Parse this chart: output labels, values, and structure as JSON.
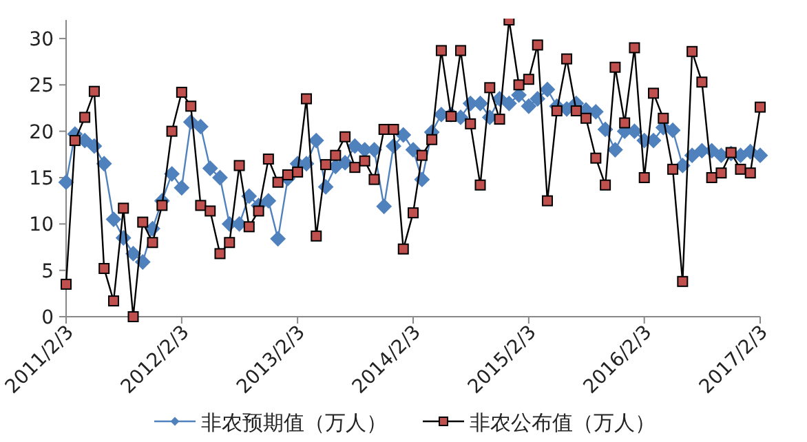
{
  "chart_data": {
    "type": "line",
    "x": [
      "2011-02-03",
      "2011-03-03",
      "2011-04-03",
      "2011-05-03",
      "2011-06-03",
      "2011-07-03",
      "2011-08-03",
      "2011-09-03",
      "2011-10-03",
      "2011-11-03",
      "2011-12-03",
      "2012-01-03",
      "2012-02-03",
      "2012-03-03",
      "2012-04-03",
      "2012-05-03",
      "2012-06-03",
      "2012-07-03",
      "2012-08-03",
      "2012-09-03",
      "2012-10-03",
      "2012-11-03",
      "2012-12-03",
      "2013-01-03",
      "2013-02-03",
      "2013-03-03",
      "2013-04-03",
      "2013-05-03",
      "2013-06-03",
      "2013-07-03",
      "2013-08-03",
      "2013-09-03",
      "2013-10-03",
      "2013-11-03",
      "2013-12-03",
      "2014-01-03",
      "2014-02-03",
      "2014-03-03",
      "2014-04-03",
      "2014-05-03",
      "2014-06-03",
      "2014-07-03",
      "2014-08-03",
      "2014-09-03",
      "2014-10-03",
      "2014-11-03",
      "2014-12-03",
      "2015-01-03",
      "2015-02-03",
      "2015-03-03",
      "2015-04-03",
      "2015-05-03",
      "2015-06-03",
      "2015-07-03",
      "2015-08-03",
      "2015-09-03",
      "2015-10-03",
      "2015-11-03",
      "2015-12-03",
      "2016-01-03",
      "2016-02-03",
      "2016-03-03",
      "2016-04-03",
      "2016-05-03",
      "2016-06-03",
      "2016-07-03",
      "2016-08-03",
      "2016-09-03",
      "2016-10-03",
      "2016-11-03",
      "2016-12-03",
      "2017-01-03",
      "2017-02-03"
    ],
    "series": [
      {
        "name": "非农预期值（万人）",
        "color": "#4f81bd",
        "marker": "diamond",
        "values": [
          14.5,
          19.7,
          19,
          18.4,
          16.5,
          10.5,
          8.5,
          6.8,
          5.9,
          9.5,
          12.5,
          15.4,
          13.9,
          21,
          20.5,
          16,
          15,
          10,
          10,
          13,
          12,
          12.5,
          8.4,
          14.9,
          16.5,
          16.5,
          19,
          14,
          16.2,
          16.6,
          18.4,
          18,
          18,
          11.9,
          18.4,
          19.6,
          18,
          14.8,
          19.9,
          21.8,
          21.8,
          21.5,
          23,
          23,
          21.5,
          23.5,
          23,
          23.9,
          22.7,
          23.5,
          24.5,
          22.7,
          22.4,
          23,
          22.3,
          22.1,
          20.2,
          18,
          20,
          20,
          19,
          19,
          20.4,
          20.1,
          16.3,
          17.4,
          17.9,
          17.9,
          17.4,
          17.6,
          17.4,
          17.8,
          17.4
        ]
      },
      {
        "name": "非农公布值（万人）",
        "color": "#c0504d",
        "marker": "square",
        "values": [
          3.5,
          19,
          21.5,
          24.3,
          5.2,
          1.7,
          11.7,
          0,
          10.2,
          8,
          12,
          20,
          24.2,
          22.7,
          12,
          11.4,
          6.8,
          8,
          16.3,
          9.7,
          11.4,
          17,
          14.5,
          15.3,
          15.6,
          23.5,
          8.7,
          16.4,
          17.4,
          19.4,
          16.1,
          16.8,
          14.8,
          20.2,
          20.2,
          7.3,
          11.2,
          17.4,
          19.1,
          28.7,
          21.6,
          28.7,
          20.8,
          14.2,
          24.7,
          21.3,
          32,
          25,
          25.6,
          29.3,
          12.5,
          22.2,
          27.8,
          22.2,
          21.4,
          17.1,
          14.2,
          26.9,
          20.9,
          29,
          15,
          24.1,
          21.4,
          15.9,
          3.8,
          28.6,
          25.3,
          15,
          15.5,
          17.7,
          15.9,
          15.5,
          22.6
        ]
      }
    ],
    "xlim": [
      "2011-02-03",
      "2017-02-03"
    ],
    "xticks": [
      {
        "value": "2011-02-03",
        "label": "2011/2/3"
      },
      {
        "value": "2012-02-03",
        "label": "2012/2/3"
      },
      {
        "value": "2013-02-03",
        "label": "2013/2/3"
      },
      {
        "value": "2014-02-03",
        "label": "2014/2/3"
      },
      {
        "value": "2015-02-03",
        "label": "2015/2/3"
      },
      {
        "value": "2016-02-03",
        "label": "2016/2/3"
      },
      {
        "value": "2017-02-03",
        "label": "2017/2/3"
      }
    ],
    "ylim": [
      0,
      32
    ],
    "yticks": [
      0,
      5,
      10,
      15,
      20,
      25,
      30
    ],
    "legend": "bottom",
    "line_style": "solid"
  }
}
